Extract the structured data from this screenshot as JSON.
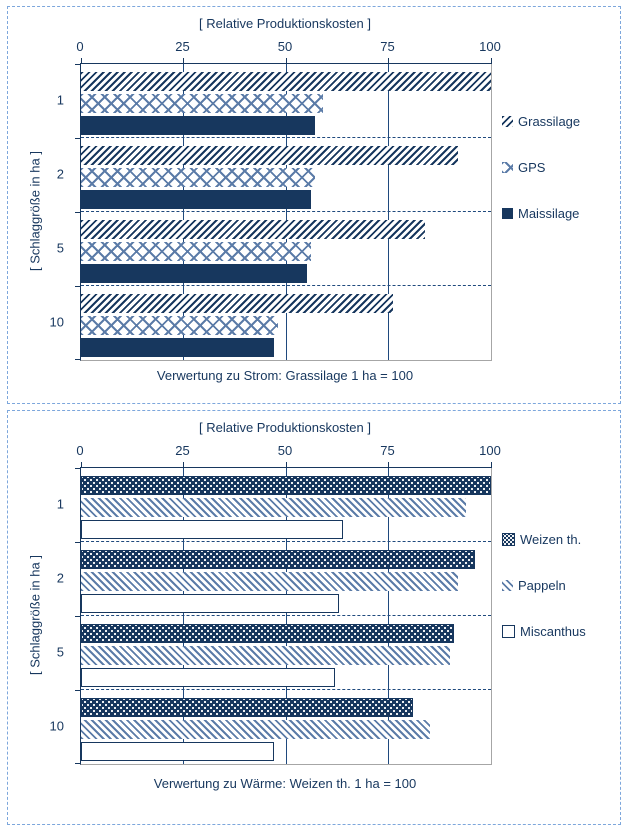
{
  "colors": {
    "navy": "#17375E",
    "steel_blue": "#5C7CA8",
    "gridline": "#1F497D",
    "frame_gray": "#A6A6A6",
    "panel_dashed_border": "#7DA7DC",
    "background": "#ffffff"
  },
  "chart_data": [
    {
      "type": "bar",
      "orientation": "horizontal",
      "title": "[ Relative Produktionskosten ]",
      "ylabel": "[ Schlaggröße in ha ]",
      "caption": "Verwertung zu Strom: Grassilage 1 ha = 100",
      "categories": [
        "1",
        "2",
        "5",
        "10"
      ],
      "xticks": [
        0,
        25,
        50,
        75,
        100
      ],
      "xlim": [
        0,
        100
      ],
      "grid": "vertical-at-25-50-75",
      "legend_position": "right-outside",
      "series": [
        {
          "name": "Grassilage",
          "pattern": "diag-forward",
          "values": [
            100,
            92,
            84,
            76
          ]
        },
        {
          "name": "GPS",
          "pattern": "crosshatch",
          "values": [
            59,
            57,
            56,
            48
          ]
        },
        {
          "name": "Maissilage",
          "pattern": "solid",
          "values": [
            57,
            56,
            55,
            47
          ]
        }
      ]
    },
    {
      "type": "bar",
      "orientation": "horizontal",
      "title": "[ Relative Produktionskosten ]",
      "ylabel": "[ Schlaggröße in ha ]",
      "caption": "Verwertung zu Wärme: Weizen th. 1 ha = 100",
      "categories": [
        "1",
        "2",
        "5",
        "10"
      ],
      "xticks": [
        0,
        25,
        50,
        75,
        100
      ],
      "xlim": [
        0,
        100
      ],
      "grid": "vertical-at-25-50-75",
      "legend_position": "right-outside",
      "series": [
        {
          "name": "Weizen th.",
          "pattern": "dots",
          "values": [
            100,
            96,
            91,
            81
          ]
        },
        {
          "name": "Pappeln",
          "pattern": "diag-back",
          "values": [
            94,
            92,
            90,
            85
          ]
        },
        {
          "name": "Miscanthus",
          "pattern": "outline",
          "values": [
            64,
            63,
            62,
            47
          ]
        }
      ]
    }
  ]
}
